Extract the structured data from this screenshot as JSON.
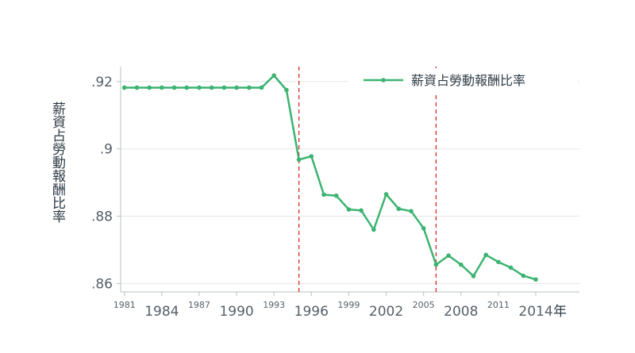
{
  "chart_data": {
    "type": "line",
    "series": [
      {
        "name": "薪資占勞動報酬比率",
        "color": "#3cb371",
        "x": [
          1981,
          1982,
          1983,
          1984,
          1985,
          1986,
          1987,
          1988,
          1989,
          1990,
          1991,
          1992,
          1993,
          1994,
          1995,
          1996,
          1997,
          1998,
          1999,
          2000,
          2001,
          2002,
          2003,
          2004,
          2005,
          2006,
          2007,
          2008,
          2009,
          2010,
          2011,
          2012,
          2013,
          2014
        ],
        "values": [
          0.9182,
          0.9182,
          0.9182,
          0.9182,
          0.9182,
          0.9182,
          0.9182,
          0.9182,
          0.9182,
          0.9182,
          0.9182,
          0.9182,
          0.9218,
          0.9175,
          0.8968,
          0.8978,
          0.8864,
          0.8861,
          0.882,
          0.8817,
          0.876,
          0.8865,
          0.8822,
          0.8815,
          0.8764,
          0.8656,
          0.8683,
          0.8656,
          0.8622,
          0.8685,
          0.8664,
          0.8647,
          0.8623,
          0.8612
        ]
      }
    ],
    "xlabel": "年",
    "ylabel": "薪資占勞動報酬比率",
    "xlim": [
      1980.7,
      2017.5
    ],
    "ylim": [
      0.8575,
      0.9235
    ],
    "yticks": [
      {
        "value": 0.86,
        "label": ".86"
      },
      {
        "value": 0.88,
        "label": ".88"
      },
      {
        "value": 0.9,
        "label": ".9"
      },
      {
        "value": 0.92,
        "label": ".92"
      }
    ],
    "xticks_major": [
      1984,
      1990,
      1996,
      2002,
      2008,
      2014
    ],
    "xticks_minor": [
      1981,
      1987,
      1993,
      1999,
      2005,
      2011
    ],
    "reference_lines": [
      {
        "x": 1995,
        "color": "#d62728",
        "style": "dashed"
      },
      {
        "x": 2006,
        "color": "#d62728",
        "style": "dashed"
      }
    ],
    "grid": "horizontal",
    "legend_position": "top-right"
  },
  "colors": {
    "series": "#3cb371",
    "reference": "#d62728",
    "grid": "#e3e6e8",
    "axis": "#b9c0c6",
    "text": "#2e3b45"
  }
}
